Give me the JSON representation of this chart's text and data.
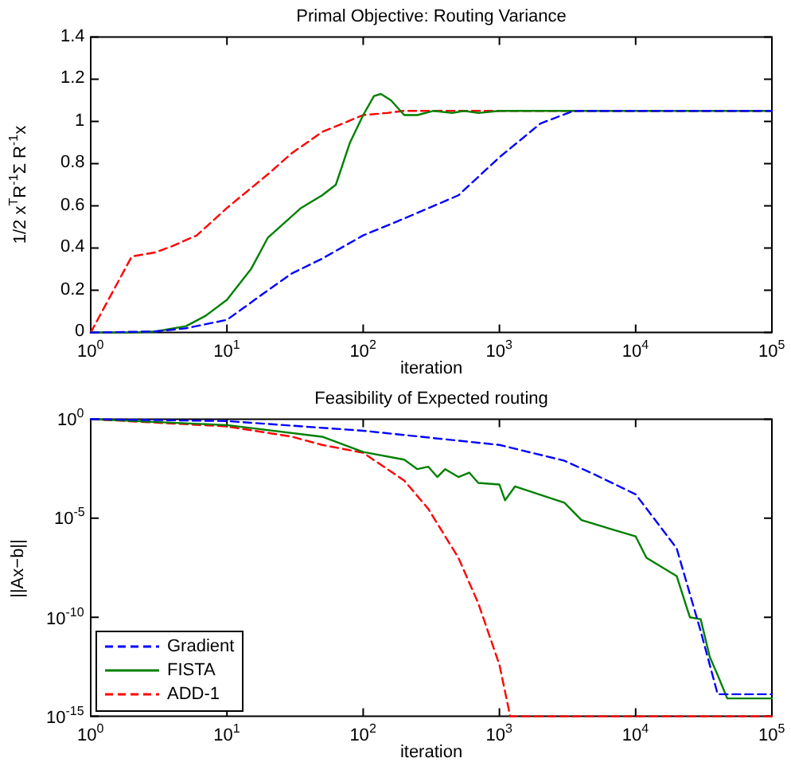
{
  "chart_data": [
    {
      "type": "line",
      "title": "Primal Objective: Routing Variance",
      "xlabel": "iteration",
      "ylabel": "1/2 x$^{T}$R$^{-1}$Σ R$^{-1}$x",
      "log": "x",
      "grid": false,
      "legend": false,
      "xlim": [
        1,
        100000
      ],
      "xticks": [
        {
          "value": 1,
          "label": "10$^{0}$"
        },
        {
          "value": 10,
          "label": "10$^{1}$"
        },
        {
          "value": 100,
          "label": "10$^{2}$"
        },
        {
          "value": 1000,
          "label": "10$^{3}$"
        },
        {
          "value": 10000,
          "label": "10$^{4}$"
        },
        {
          "value": 100000,
          "label": "10$^{5}$"
        }
      ],
      "ylim": [
        0,
        1.4
      ],
      "yticks": [
        0,
        0.2,
        0.4,
        0.6,
        0.8,
        1,
        1.2,
        1.4
      ],
      "series": [
        {
          "color": "#0000ff",
          "line_style": "dashed",
          "x": [
            1,
            3,
            5,
            10,
            20,
            30,
            50,
            100,
            200,
            500,
            1000,
            2000,
            3500,
            100000
          ],
          "values": [
            0,
            0.005,
            0.02,
            0.06,
            0.2,
            0.28,
            0.35,
            0.46,
            0.54,
            0.65,
            0.83,
            0.99,
            1.05,
            1.05
          ]
        },
        {
          "color": "#008000",
          "line_style": "solid",
          "x": [
            1,
            2,
            3,
            5,
            7,
            10,
            15,
            20,
            35,
            50,
            63,
            80,
            100,
            120,
            135,
            160,
            200,
            250,
            330,
            450,
            550,
            700,
            1000,
            100000
          ],
          "values": [
            0,
            0,
            0.005,
            0.03,
            0.08,
            0.155,
            0.3,
            0.45,
            0.59,
            0.65,
            0.7,
            0.9,
            1.03,
            1.12,
            1.13,
            1.1,
            1.03,
            1.03,
            1.05,
            1.04,
            1.05,
            1.04,
            1.05,
            1.05
          ]
        },
        {
          "color": "#ff0000",
          "line_style": "dashed",
          "x": [
            1,
            2,
            3,
            4,
            6,
            10,
            20,
            30,
            50,
            100,
            150,
            200,
            100000
          ],
          "values": [
            0,
            0.36,
            0.38,
            0.41,
            0.46,
            0.59,
            0.75,
            0.85,
            0.95,
            1.03,
            1.04,
            1.05,
            1.05
          ]
        }
      ]
    },
    {
      "type": "line",
      "title": "Feasibility of Expected routing",
      "xlabel": "iteration",
      "ylabel": "||Ax−b||",
      "log": "xy",
      "grid": false,
      "legend": "bottom left",
      "xlim": [
        1,
        100000
      ],
      "xticks": [
        {
          "value": 1,
          "label": "10$^{0}$"
        },
        {
          "value": 10,
          "label": "10$^{1}$"
        },
        {
          "value": 100,
          "label": "10$^{2}$"
        },
        {
          "value": 1000,
          "label": "10$^{3}$"
        },
        {
          "value": 10000,
          "label": "10$^{4}$"
        },
        {
          "value": 100000,
          "label": "10$^{5}$"
        }
      ],
      "ylim": [
        1e-15,
        1
      ],
      "yticks": [
        {
          "value": 1e-15,
          "label": "10$^{-15}$"
        },
        {
          "value": 1e-10,
          "label": "10$^{-10}$"
        },
        {
          "value": 1e-05,
          "label": "10$^{-5}$"
        },
        {
          "value": 1,
          "label": "10$^{0}$"
        }
      ],
      "series": [
        {
          "name": "Gradient",
          "color": "#0000ff",
          "line_style": "dashed",
          "x": [
            1,
            10,
            100,
            1000,
            3000,
            5000,
            10000,
            20000,
            30000,
            40000,
            100000
          ],
          "values": [
            1,
            0.8,
            0.26,
            0.05,
            0.008,
            0.0016,
            0.00016,
            3e-07,
            2e-11,
            1.3e-14,
            1.3e-14
          ]
        },
        {
          "name": "FISTA",
          "color": "#008000",
          "line_style": "solid",
          "x": [
            1,
            10,
            50,
            100,
            200,
            250,
            300,
            350,
            400,
            500,
            600,
            700,
            1000,
            1100,
            1300,
            3000,
            4000,
            10000,
            12000,
            20000,
            25000,
            30000,
            35000,
            40000,
            47000,
            100000
          ],
          "values": [
            1,
            0.5,
            0.13,
            0.022,
            0.009,
            0.003,
            0.004,
            0.0012,
            0.003,
            0.0012,
            0.002,
            0.0006,
            0.0005,
            8e-05,
            0.0004,
            6e-05,
            8e-06,
            1.2e-06,
            1e-07,
            1.2e-08,
            1e-10,
            8e-11,
            1e-12,
            1.2e-13,
            8e-15,
            8e-15
          ]
        },
        {
          "name": "ADD-1",
          "color": "#ff0000",
          "line_style": "dashed",
          "x": [
            1,
            10,
            30,
            50,
            100,
            200,
            300,
            500,
            700,
            1000,
            1200,
            100000
          ],
          "values": [
            1,
            0.43,
            0.13,
            0.05,
            0.02,
            0.0008,
            3e-05,
            1e-07,
            5e-10,
            4e-13,
            1e-15,
            1e-15
          ]
        }
      ]
    }
  ]
}
